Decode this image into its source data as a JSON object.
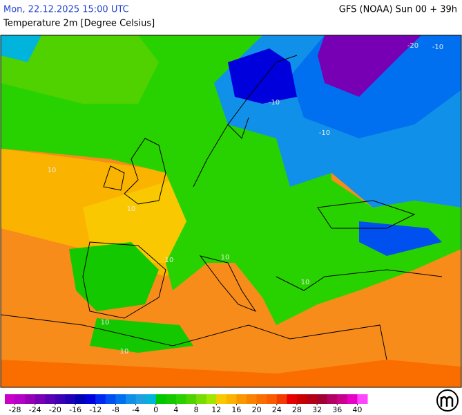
{
  "header": {
    "datetime": "Mon, 22.12.2025 15:00 UTC",
    "model": "GFS (NOAA) Sun 00 + 39h",
    "title": "Temperature 2m [Degree Celsius]"
  },
  "map": {
    "contour_labels": [
      -20,
      -10,
      -10,
      -10,
      10,
      10,
      10,
      10,
      10,
      10,
      10
    ],
    "colorbar": {
      "lim": [
        -30,
        42
      ],
      "ticks": [
        -28,
        -24,
        -20,
        -16,
        -12,
        -8,
        -4,
        0,
        4,
        8,
        12,
        16,
        20,
        24,
        28,
        32,
        36,
        40
      ],
      "colors": [
        "#c800c8",
        "#b400c8",
        "#9600b4",
        "#7800b4",
        "#5a00b4",
        "#3c00b4",
        "#1e00b4",
        "#0000b4",
        "#0000dc",
        "#0028f0",
        "#0050f0",
        "#0070f0",
        "#1090e8",
        "#20a0e0",
        "#00b4dc",
        "#00c800",
        "#14c800",
        "#28d200",
        "#50d200",
        "#78dc00",
        "#a0e600",
        "#fac800",
        "#fab400",
        "#fa9600",
        "#fa8200",
        "#fa6e00",
        "#fa5a00",
        "#f03c00",
        "#e60000",
        "#c80000",
        "#b40014",
        "#a00032",
        "#b40064",
        "#c8008c",
        "#e600c8",
        "#ff46ff"
      ]
    }
  }
}
